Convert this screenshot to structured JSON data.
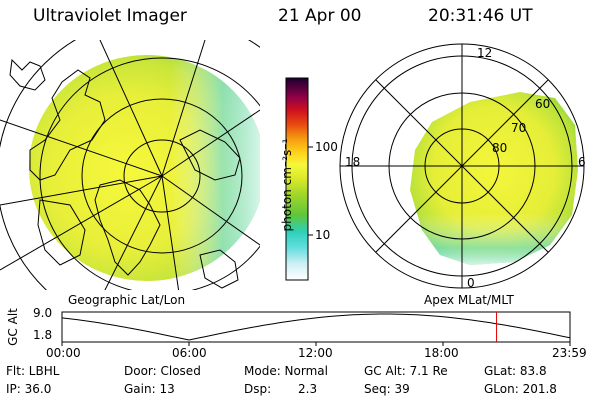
{
  "header": {
    "instrument": "Ultraviolet Imager",
    "date": "21 Apr 00",
    "time": "20:31:46 UT"
  },
  "panels": {
    "left_label": "Geographic Lat/Lon",
    "right_label": "Apex MLat/MLT"
  },
  "colorbar": {
    "label": "photon cm⁻²s⁻¹",
    "ticks": [
      "100",
      "10"
    ],
    "colors": [
      "#ffffff",
      "#bfeff5",
      "#62dede",
      "#2ecfb8",
      "#5ec63a",
      "#9fd62a",
      "#d8e82a",
      "#f6f83b",
      "#ffd21a",
      "#f59b10",
      "#e84a10",
      "#d01020",
      "#a1003a",
      "#5a0050",
      "#1a0030"
    ]
  },
  "polar_grid": {
    "mlt_labels": [
      "12",
      "18",
      "6",
      "0"
    ],
    "lat_labels": [
      "60",
      "70",
      "80"
    ]
  },
  "timeline": {
    "axis_label": "GC Alt",
    "y_ticks": [
      "9.0",
      "1.8"
    ],
    "x_ticks": [
      "00:00",
      "06:00",
      "12:00",
      "18:00",
      "23:59"
    ],
    "current_time_hours": 20.53,
    "marker_color": "#e00000"
  },
  "footer": {
    "filter": "Flt: LBHL",
    "door": "Door: Closed",
    "mode": "Mode: Normal",
    "gc_alt": "GC Alt: 7.1 Re",
    "glat": "GLat: 83.8",
    "ip": "IP: 36.0",
    "gain": "Gain: 13",
    "dsp_label": "Dsp:",
    "dsp_value": "2.3",
    "seq": "Seq: 39",
    "glon": "GLon: 201.8"
  }
}
